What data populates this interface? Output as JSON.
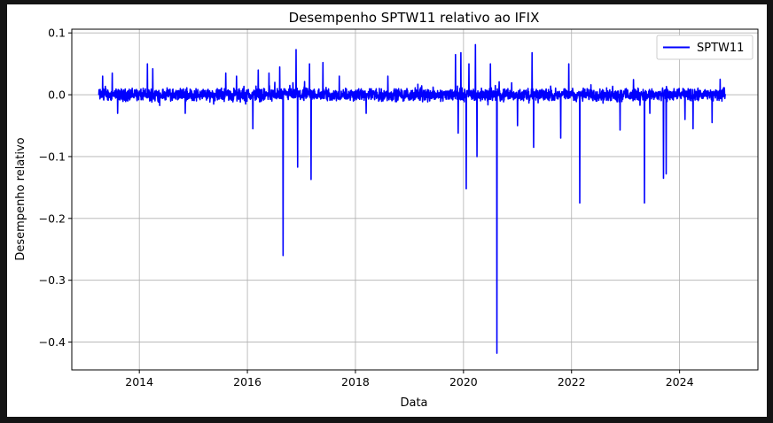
{
  "chart_data": {
    "type": "line",
    "title": "Desempenho SPTW11 relativo ao IFIX",
    "xlabel": "Data",
    "ylabel": "Desempenho relativo",
    "xlim": [
      2012.75,
      2025.45
    ],
    "ylim": [
      -0.445,
      0.106
    ],
    "xticks": [
      {
        "value": 2014,
        "label": "2014"
      },
      {
        "value": 2016,
        "label": "2016"
      },
      {
        "value": 2018,
        "label": "2018"
      },
      {
        "value": 2020,
        "label": "2020"
      },
      {
        "value": 2022,
        "label": "2022"
      },
      {
        "value": 2024,
        "label": "2024"
      }
    ],
    "yticks": [
      {
        "value": 0.1,
        "label": "0.1"
      },
      {
        "value": 0.0,
        "label": "0.0"
      },
      {
        "value": -0.1,
        "label": "−0.1"
      },
      {
        "value": -0.2,
        "label": "−0.2"
      },
      {
        "value": -0.3,
        "label": "−0.3"
      },
      {
        "value": -0.4,
        "label": "−0.4"
      }
    ],
    "grid": true,
    "legend_position": "top-right",
    "series": [
      {
        "name": "SPTW11",
        "color": "#0000ff",
        "x_range": [
          2013.25,
          2024.85
        ],
        "noise_amplitude": 0.012,
        "spikes": [
          {
            "x": 2013.32,
            "y": 0.03
          },
          {
            "x": 2013.5,
            "y": 0.035
          },
          {
            "x": 2013.6,
            "y": -0.03
          },
          {
            "x": 2014.15,
            "y": 0.05
          },
          {
            "x": 2014.25,
            "y": 0.042
          },
          {
            "x": 2014.85,
            "y": -0.03
          },
          {
            "x": 2015.6,
            "y": 0.035
          },
          {
            "x": 2015.8,
            "y": 0.03
          },
          {
            "x": 2016.1,
            "y": -0.055
          },
          {
            "x": 2016.2,
            "y": 0.04
          },
          {
            "x": 2016.4,
            "y": 0.035
          },
          {
            "x": 2016.6,
            "y": 0.045
          },
          {
            "x": 2016.66,
            "y": -0.26
          },
          {
            "x": 2016.9,
            "y": 0.073
          },
          {
            "x": 2016.93,
            "y": -0.117
          },
          {
            "x": 2017.15,
            "y": 0.05
          },
          {
            "x": 2017.18,
            "y": -0.137
          },
          {
            "x": 2017.4,
            "y": 0.052
          },
          {
            "x": 2017.7,
            "y": 0.03
          },
          {
            "x": 2018.2,
            "y": -0.03
          },
          {
            "x": 2018.6,
            "y": 0.03
          },
          {
            "x": 2019.9,
            "y": -0.062
          },
          {
            "x": 2019.85,
            "y": 0.065
          },
          {
            "x": 2019.95,
            "y": 0.068
          },
          {
            "x": 2020.05,
            "y": -0.152
          },
          {
            "x": 2020.1,
            "y": 0.05
          },
          {
            "x": 2020.22,
            "y": 0.081
          },
          {
            "x": 2020.25,
            "y": -0.1
          },
          {
            "x": 2020.5,
            "y": 0.05
          },
          {
            "x": 2020.62,
            "y": -0.418
          },
          {
            "x": 2021.0,
            "y": -0.05
          },
          {
            "x": 2021.27,
            "y": 0.068
          },
          {
            "x": 2021.3,
            "y": -0.085
          },
          {
            "x": 2021.8,
            "y": -0.07
          },
          {
            "x": 2021.95,
            "y": 0.05
          },
          {
            "x": 2022.15,
            "y": -0.175
          },
          {
            "x": 2022.9,
            "y": -0.057
          },
          {
            "x": 2023.35,
            "y": -0.175
          },
          {
            "x": 2023.45,
            "y": -0.03
          },
          {
            "x": 2023.7,
            "y": -0.135
          },
          {
            "x": 2023.75,
            "y": -0.128
          },
          {
            "x": 2024.1,
            "y": -0.04
          },
          {
            "x": 2024.25,
            "y": -0.055
          },
          {
            "x": 2024.6,
            "y": -0.045
          },
          {
            "x": 2024.75,
            "y": 0.025
          }
        ]
      }
    ]
  }
}
